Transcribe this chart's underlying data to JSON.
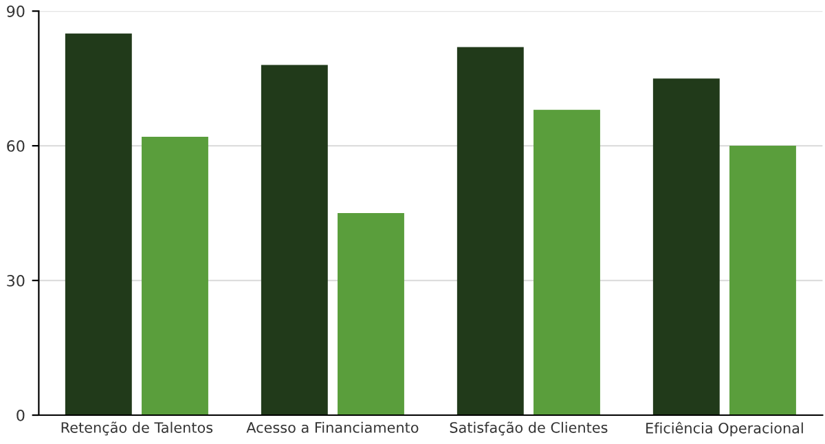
{
  "chart_data": {
    "type": "bar",
    "categories": [
      "Retenção de Talentos",
      "Acesso a Financiamento",
      "Satisfação de Clientes",
      "Eficiência Operacional"
    ],
    "series": [
      {
        "color": "#213a1a",
        "values": [
          85,
          78,
          82,
          75
        ]
      },
      {
        "color": "#5a9e3c",
        "values": [
          62,
          45,
          68,
          60
        ]
      }
    ],
    "ylim": [
      0,
      90
    ],
    "yticks": [
      0,
      30,
      60,
      90
    ],
    "grid": "y"
  }
}
